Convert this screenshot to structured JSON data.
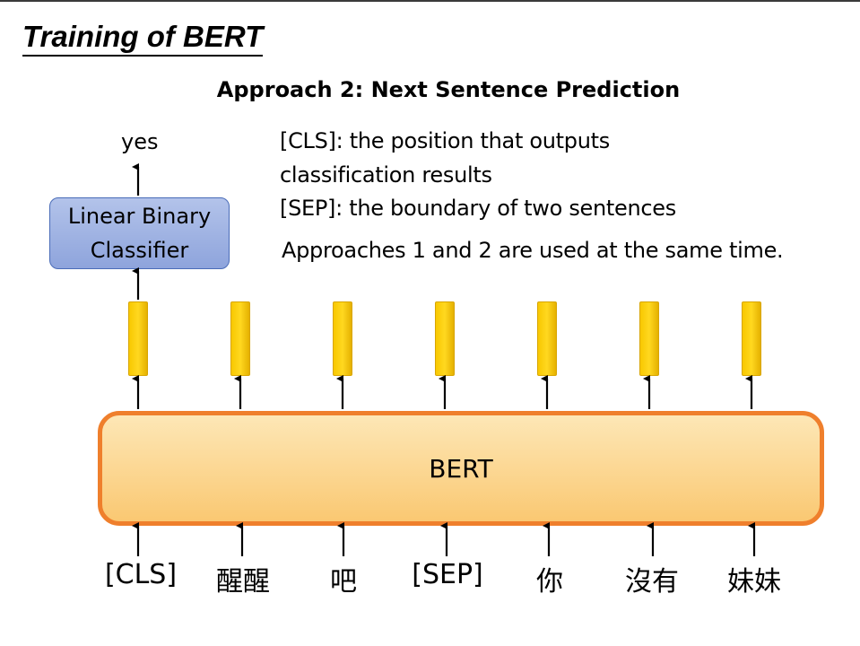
{
  "slide": {
    "title": "Training of BERT",
    "subtitle": "Approach 2: Next Sentence Prediction"
  },
  "notes": {
    "cls_line1": "[CLS]: the position that outputs",
    "cls_line2": "classification results",
    "sep": "[SEP]: the boundary of two sentences",
    "approaches": "Approaches 1 and 2 are used at the same time."
  },
  "classifier": {
    "line1": "Linear Binary",
    "line2": "Classifier",
    "output": "yes"
  },
  "bert": {
    "label": "BERT"
  },
  "tokens": [
    "[CLS]",
    "醒醒",
    "吧",
    "[SEP]",
    "你",
    "沒有",
    "妹妹"
  ],
  "colors": {
    "bert_border": "#ef7f2c",
    "bert_fill": "#fac872",
    "classifier_fill": "#8ea4dc",
    "token_vector": "#ffd000"
  }
}
